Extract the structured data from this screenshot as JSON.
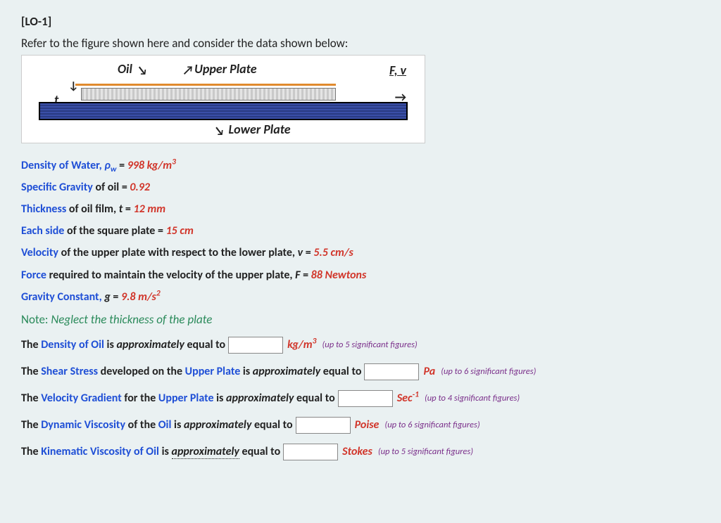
{
  "header": {
    "lo_tag": "[LO-1]",
    "intro": "Refer to the figure shown here and consider the data shown below:"
  },
  "figure": {
    "label_oil": "Oil",
    "label_upper_plate": "Upper Plate",
    "label_fv": "F, v",
    "label_t": "t",
    "label_lower_plate": "Lower Plate",
    "colors": {
      "oil_line": "#e08a2e",
      "lower_plate_fill_a": "#3a4fa8",
      "lower_plate_fill_b": "#2a3b84",
      "upper_plate_fill_a": "#c9c9c9",
      "upper_plate_fill_b": "#e4e4e4",
      "figure_bg": "#ffffff",
      "page_bg": "#eaf1f2"
    }
  },
  "data": {
    "density_water": {
      "label": "Density of Water, ",
      "sym": "ρ",
      "sub": "w",
      "eq": " = ",
      "value": "998 kg/m",
      "sup": "3"
    },
    "sg_oil": {
      "label": "Specific Gravity",
      "mid": " of oil = ",
      "value": "0.92"
    },
    "thickness": {
      "label": "Thickness",
      "mid": " of oil film, ",
      "var": "t",
      "eq": " = ",
      "value": "12 mm"
    },
    "side": {
      "label": "Each side",
      "mid": " of the square plate = ",
      "value": "15 cm"
    },
    "velocity": {
      "label": "Velocity",
      "mid": " of the upper plate with respect to the lower plate,  ",
      "var": "v",
      "eq": " = ",
      "value": "5.5 cm/s"
    },
    "force": {
      "label": "Force",
      "mid": " required to maintain the velocity of the upper plate, ",
      "var": "F",
      "eq": " = ",
      "value": "88 Newtons"
    },
    "gravity": {
      "label": "Gravity Constant, ",
      "var": "g",
      "eq": " = ",
      "value": "9.8 m/s",
      "sup": "2"
    }
  },
  "note": {
    "label": "Note: ",
    "text": "Neglect the thickness of the plate"
  },
  "questions": {
    "q1": {
      "pre1": "The ",
      "term1": "Density of Oil",
      "mid": " is ",
      "approx": "approximately",
      "post": " equal to ",
      "unit_pre": "kg/m",
      "unit_sup": "3",
      "sig": "(up to 5 significant figures)"
    },
    "q2": {
      "pre1": "The ",
      "term1": "Shear Stress",
      "mid1": " developed on the ",
      "term2": "Upper Plate",
      "mid": " is ",
      "approx": "approximately",
      "post": " equal to ",
      "unit": "Pa",
      "sig": "(up to 6 significant figures)"
    },
    "q3": {
      "pre1": "The ",
      "term1": "Velocity Gradient",
      "mid1": " for the ",
      "term2": "Upper Plate",
      "mid": " is ",
      "approx": "approximately",
      "post": " equal to ",
      "unit_pre": "Sec",
      "unit_sup": "-1",
      "sig": "(up to 4 significant figures)"
    },
    "q4": {
      "pre1": "The ",
      "term1": "Dynamic Viscosity",
      "mid1": " of the ",
      "term2": "Oil",
      "mid": " is ",
      "approx": "approximately",
      "post": " equal to ",
      "unit": "Poise",
      "sig": "(up to 6 significant figures)"
    },
    "q5": {
      "pre1": "The ",
      "term1": "Kinematic Viscosity of Oil",
      "mid": " is ",
      "approx": "approximately",
      "post": " equal to ",
      "unit": "Stokes",
      "sig": "(up to 5 significant figures)"
    }
  },
  "colors": {
    "blue": "#1f4fd6",
    "red": "#d1352a",
    "green": "#2a8a5a",
    "purple": "#7a2f8a"
  }
}
